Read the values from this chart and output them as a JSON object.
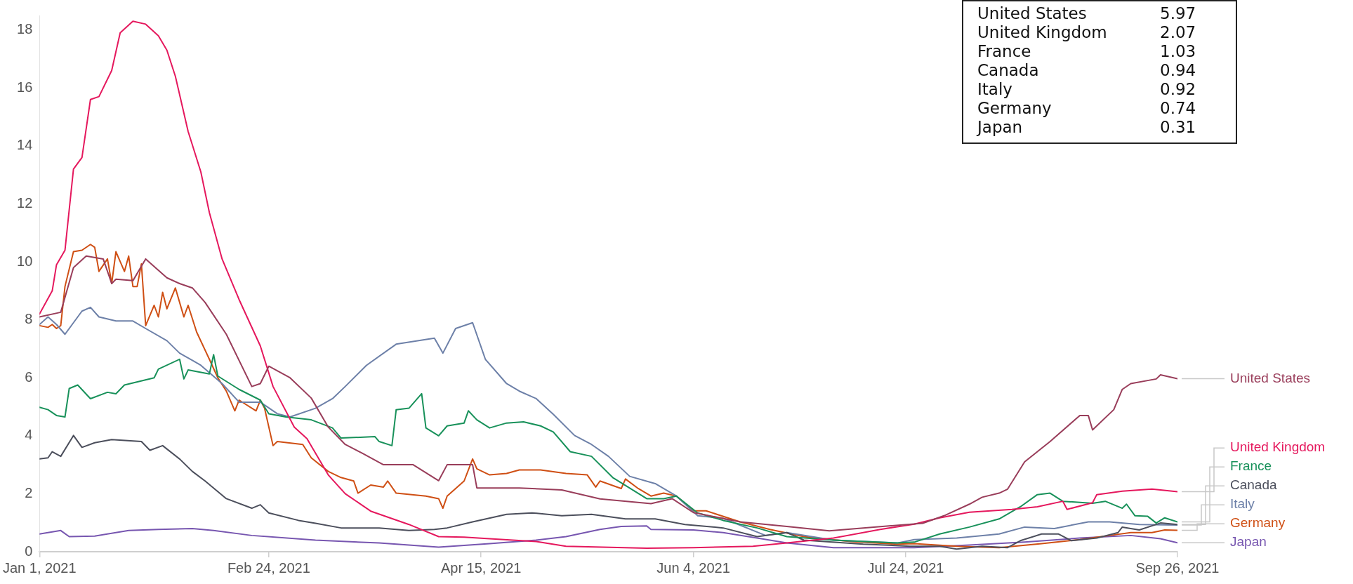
{
  "chart_data": {
    "type": "line",
    "xlim": [
      "2021-01-01",
      "2021-09-26"
    ],
    "xticks": [
      {
        "value": "2021-01-01",
        "label": "Jan 1, 2021"
      },
      {
        "value": "2021-02-24",
        "label": "Feb 24, 2021"
      },
      {
        "value": "2021-04-15",
        "label": "Apr 15, 2021"
      },
      {
        "value": "2021-06-04",
        "label": "Jun 4, 2021"
      },
      {
        "value": "2021-07-24",
        "label": "Jul 24, 2021"
      },
      {
        "value": "2021-09-26",
        "label": "Sep 26, 2021"
      }
    ],
    "ylim": [
      0,
      18.5
    ],
    "yticks": [
      0,
      2,
      4,
      6,
      8,
      10,
      12,
      14,
      16,
      18
    ],
    "series": [
      {
        "name": "United States",
        "color": "#993d5a",
        "x": [
          "2021-01-01",
          "2021-01-06",
          "2021-01-09",
          "2021-01-12",
          "2021-01-16",
          "2021-01-18",
          "2021-01-19",
          "2021-01-23",
          "2021-01-26",
          "2021-01-31",
          "2021-02-03",
          "2021-02-06",
          "2021-02-09",
          "2021-02-14",
          "2021-02-20",
          "2021-02-22",
          "2021-02-24",
          "2021-03-01",
          "2021-03-06",
          "2021-03-10",
          "2021-03-14",
          "2021-03-18",
          "2021-03-23",
          "2021-03-30",
          "2021-04-05",
          "2021-04-07",
          "2021-04-13",
          "2021-04-14",
          "2021-04-24",
          "2021-05-04",
          "2021-05-13",
          "2021-05-25",
          "2021-05-30",
          "2021-06-04",
          "2021-06-15",
          "2021-06-26",
          "2021-07-06",
          "2021-07-14",
          "2021-07-28",
          "2021-08-02",
          "2021-08-08",
          "2021-08-11",
          "2021-08-15",
          "2021-08-17",
          "2021-08-21",
          "2021-08-27",
          "2021-09-03",
          "2021-09-05",
          "2021-09-06",
          "2021-09-11",
          "2021-09-13",
          "2021-09-15",
          "2021-09-21",
          "2021-09-22",
          "2021-09-26"
        ],
        "values": [
          8.1,
          8.26,
          9.8,
          10.2,
          10.1,
          9.25,
          9.4,
          9.35,
          10.1,
          9.45,
          9.25,
          9.1,
          8.6,
          7.5,
          5.7,
          5.8,
          6.4,
          6.0,
          5.3,
          4.3,
          3.7,
          3.4,
          3.0,
          3.0,
          2.45,
          3.0,
          3.0,
          2.2,
          2.2,
          2.13,
          1.82,
          1.66,
          1.83,
          1.35,
          1.03,
          0.87,
          0.72,
          0.82,
          0.98,
          1.24,
          1.64,
          1.88,
          2.02,
          2.16,
          3.1,
          3.8,
          4.7,
          4.7,
          4.2,
          4.9,
          5.6,
          5.8,
          5.96,
          6.1,
          5.97
        ]
      },
      {
        "name": "United Kingdom",
        "color": "#e5185d",
        "x": [
          "2021-01-01",
          "2021-01-04",
          "2021-01-05",
          "2021-01-07",
          "2021-01-09",
          "2021-01-11",
          "2021-01-13",
          "2021-01-15",
          "2021-01-18",
          "2021-01-20",
          "2021-01-23",
          "2021-01-26",
          "2021-01-29",
          "2021-01-31",
          "2021-02-02",
          "2021-02-05",
          "2021-02-08",
          "2021-02-10",
          "2021-02-13",
          "2021-02-17",
          "2021-02-22",
          "2021-02-25",
          "2021-03-02",
          "2021-03-05",
          "2021-03-10",
          "2021-03-14",
          "2021-03-20",
          "2021-03-29",
          "2021-04-05",
          "2021-04-11",
          "2021-04-17",
          "2021-04-28",
          "2021-05-05",
          "2021-05-24",
          "2021-06-04",
          "2021-06-18",
          "2021-06-26",
          "2021-07-07",
          "2021-07-18",
          "2021-07-26",
          "2021-08-01",
          "2021-08-08",
          "2021-08-18",
          "2021-08-24",
          "2021-08-30",
          "2021-08-31",
          "2021-09-06",
          "2021-09-07",
          "2021-09-13",
          "2021-09-20",
          "2021-09-26"
        ],
        "values": [
          8.2,
          9.0,
          9.9,
          10.4,
          13.2,
          13.6,
          15.6,
          15.7,
          16.6,
          17.9,
          18.3,
          18.2,
          17.8,
          17.3,
          16.4,
          14.5,
          13.1,
          11.7,
          10.1,
          8.7,
          7.1,
          5.7,
          4.3,
          3.9,
          2.65,
          2.0,
          1.4,
          0.94,
          0.52,
          0.5,
          0.45,
          0.35,
          0.19,
          0.12,
          0.14,
          0.19,
          0.3,
          0.47,
          0.77,
          0.95,
          1.17,
          1.36,
          1.46,
          1.55,
          1.74,
          1.46,
          1.69,
          1.97,
          2.09,
          2.16,
          2.07
        ]
      },
      {
        "name": "France",
        "color": "#18915a",
        "x": [
          "2021-01-01",
          "2021-01-03",
          "2021-01-05",
          "2021-01-07",
          "2021-01-08",
          "2021-01-10",
          "2021-01-13",
          "2021-01-17",
          "2021-01-19",
          "2021-01-21",
          "2021-01-28",
          "2021-01-29",
          "2021-02-03",
          "2021-02-04",
          "2021-02-05",
          "2021-02-10",
          "2021-02-11",
          "2021-02-12",
          "2021-02-17",
          "2021-02-22",
          "2021-02-24",
          "2021-02-28",
          "2021-03-06",
          "2021-03-11",
          "2021-03-13",
          "2021-03-21",
          "2021-03-22",
          "2021-03-25",
          "2021-03-26",
          "2021-03-29",
          "2021-04-01",
          "2021-04-02",
          "2021-04-05",
          "2021-04-07",
          "2021-04-11",
          "2021-04-12",
          "2021-04-14",
          "2021-04-17",
          "2021-04-21",
          "2021-04-25",
          "2021-04-29",
          "2021-05-02",
          "2021-05-06",
          "2021-05-11",
          "2021-05-16",
          "2021-05-24",
          "2021-05-28",
          "2021-05-31",
          "2021-06-05",
          "2021-06-11",
          "2021-06-19",
          "2021-06-26",
          "2021-07-07",
          "2021-07-22",
          "2021-07-26",
          "2021-08-01",
          "2021-08-08",
          "2021-08-15",
          "2021-08-20",
          "2021-08-24",
          "2021-08-27",
          "2021-08-30",
          "2021-09-06",
          "2021-09-09",
          "2021-09-13",
          "2021-09-14",
          "2021-09-16",
          "2021-09-19",
          "2021-09-21",
          "2021-09-23",
          "2021-09-26"
        ],
        "values": [
          4.98,
          4.9,
          4.7,
          4.65,
          5.63,
          5.75,
          5.28,
          5.5,
          5.45,
          5.75,
          6.0,
          6.3,
          6.64,
          5.96,
          6.27,
          6.13,
          6.8,
          6.06,
          5.6,
          5.23,
          4.76,
          4.65,
          4.55,
          4.27,
          3.92,
          3.97,
          3.8,
          3.66,
          4.9,
          4.95,
          5.45,
          4.27,
          4.0,
          4.34,
          4.44,
          4.86,
          4.55,
          4.27,
          4.44,
          4.48,
          4.34,
          4.13,
          3.45,
          3.29,
          2.56,
          1.83,
          1.83,
          1.92,
          1.34,
          1.08,
          0.82,
          0.52,
          0.4,
          0.3,
          0.33,
          0.61,
          0.85,
          1.13,
          1.55,
          1.97,
          2.02,
          1.74,
          1.67,
          1.74,
          1.5,
          1.64,
          1.24,
          1.22,
          0.99,
          1.17,
          1.03
        ]
      },
      {
        "name": "Canada",
        "color": "#4c4f5c",
        "x": [
          "2021-01-01",
          "2021-01-03",
          "2021-01-04",
          "2021-01-06",
          "2021-01-09",
          "2021-01-11",
          "2021-01-14",
          "2021-01-18",
          "2021-01-25",
          "2021-01-27",
          "2021-01-30",
          "2021-02-03",
          "2021-02-06",
          "2021-02-09",
          "2021-02-14",
          "2021-02-20",
          "2021-02-22",
          "2021-02-24",
          "2021-03-03",
          "2021-03-07",
          "2021-03-13",
          "2021-03-22",
          "2021-03-29",
          "2021-04-04",
          "2021-04-07",
          "2021-04-13",
          "2021-04-21",
          "2021-04-27",
          "2021-05-04",
          "2021-05-11",
          "2021-05-19",
          "2021-05-26",
          "2021-06-02",
          "2021-06-11",
          "2021-06-19",
          "2021-06-26",
          "2021-06-30",
          "2021-07-14",
          "2021-07-25",
          "2021-08-01",
          "2021-08-05",
          "2021-08-11",
          "2021-08-17",
          "2021-08-20",
          "2021-08-25",
          "2021-08-29",
          "2021-09-01",
          "2021-09-07",
          "2021-09-12",
          "2021-09-13",
          "2021-09-17",
          "2021-09-22",
          "2021-09-26"
        ],
        "values": [
          3.2,
          3.24,
          3.45,
          3.29,
          4.01,
          3.6,
          3.76,
          3.87,
          3.8,
          3.5,
          3.66,
          3.2,
          2.77,
          2.44,
          1.83,
          1.5,
          1.62,
          1.34,
          1.08,
          0.98,
          0.82,
          0.82,
          0.73,
          0.77,
          0.82,
          1.03,
          1.29,
          1.34,
          1.24,
          1.29,
          1.13,
          1.13,
          0.94,
          0.82,
          0.52,
          0.66,
          0.4,
          0.26,
          0.19,
          0.19,
          0.09,
          0.19,
          0.14,
          0.38,
          0.61,
          0.61,
          0.38,
          0.47,
          0.66,
          0.85,
          0.75,
          0.99,
          0.94
        ]
      },
      {
        "name": "Italy",
        "color": "#6d80a8",
        "x": [
          "2021-01-01",
          "2021-01-03",
          "2021-01-05",
          "2021-01-07",
          "2021-01-11",
          "2021-01-13",
          "2021-01-15",
          "2021-01-19",
          "2021-01-23",
          "2021-01-26",
          "2021-01-31",
          "2021-02-03",
          "2021-02-06",
          "2021-02-08",
          "2021-02-13",
          "2021-02-17",
          "2021-02-22",
          "2021-02-26",
          "2021-03-01",
          "2021-03-07",
          "2021-03-11",
          "2021-03-14",
          "2021-03-19",
          "2021-03-26",
          "2021-04-04",
          "2021-04-06",
          "2021-04-09",
          "2021-04-13",
          "2021-04-16",
          "2021-04-21",
          "2021-04-24",
          "2021-04-28",
          "2021-05-02",
          "2021-05-07",
          "2021-05-11",
          "2021-05-15",
          "2021-05-20",
          "2021-05-26",
          "2021-05-31",
          "2021-06-05",
          "2021-06-11",
          "2021-06-21",
          "2021-06-26",
          "2021-07-07",
          "2021-07-22",
          "2021-07-26",
          "2021-08-05",
          "2021-08-15",
          "2021-08-21",
          "2021-08-28",
          "2021-09-05",
          "2021-09-10",
          "2021-09-17",
          "2021-09-26"
        ],
        "values": [
          7.84,
          8.1,
          7.84,
          7.5,
          8.3,
          8.43,
          8.1,
          7.96,
          7.96,
          7.7,
          7.28,
          6.85,
          6.6,
          6.43,
          5.8,
          5.16,
          5.16,
          4.76,
          4.65,
          4.95,
          5.28,
          5.7,
          6.43,
          7.16,
          7.37,
          6.85,
          7.7,
          7.9,
          6.64,
          5.8,
          5.54,
          5.28,
          4.74,
          4.01,
          3.7,
          3.29,
          2.6,
          2.35,
          1.92,
          1.24,
          1.15,
          0.56,
          0.66,
          0.4,
          0.3,
          0.42,
          0.47,
          0.61,
          0.85,
          0.8,
          1.03,
          1.03,
          0.94,
          0.92
        ]
      },
      {
        "name": "Germany",
        "color": "#cf4f14",
        "x": [
          "2021-01-01",
          "2021-01-03",
          "2021-01-04",
          "2021-01-05",
          "2021-01-06",
          "2021-01-07",
          "2021-01-09",
          "2021-01-11",
          "2021-01-13",
          "2021-01-14",
          "2021-01-15",
          "2021-01-17",
          "2021-01-18",
          "2021-01-19",
          "2021-01-21",
          "2021-01-22",
          "2021-01-23",
          "2021-01-24",
          "2021-01-25",
          "2021-01-26",
          "2021-01-28",
          "2021-01-29",
          "2021-01-30",
          "2021-01-31",
          "2021-02-02",
          "2021-02-04",
          "2021-02-05",
          "2021-02-07",
          "2021-02-10",
          "2021-02-12",
          "2021-02-14",
          "2021-02-16",
          "2021-02-17",
          "2021-02-21",
          "2021-02-22",
          "2021-02-23",
          "2021-02-25",
          "2021-02-26",
          "2021-03-04",
          "2021-03-06",
          "2021-03-10",
          "2021-03-13",
          "2021-03-16",
          "2021-03-17",
          "2021-03-20",
          "2021-03-23",
          "2021-03-24",
          "2021-03-26",
          "2021-04-02",
          "2021-04-05",
          "2021-04-06",
          "2021-04-07",
          "2021-04-11",
          "2021-04-13",
          "2021-04-14",
          "2021-04-17",
          "2021-04-21",
          "2021-04-24",
          "2021-04-29",
          "2021-05-05",
          "2021-05-10",
          "2021-05-12",
          "2021-05-13",
          "2021-05-18",
          "2021-05-19",
          "2021-05-22",
          "2021-05-25",
          "2021-05-28",
          "2021-05-31",
          "2021-06-04",
          "2021-06-07",
          "2021-06-15",
          "2021-06-22",
          "2021-06-30",
          "2021-07-11",
          "2021-07-22",
          "2021-07-26",
          "2021-08-05",
          "2021-08-15",
          "2021-08-25",
          "2021-09-03",
          "2021-09-10",
          "2021-09-15",
          "2021-09-20",
          "2021-09-23",
          "2021-09-26"
        ],
        "values": [
          7.8,
          7.74,
          7.84,
          7.7,
          7.8,
          9.15,
          10.35,
          10.4,
          10.6,
          10.5,
          9.67,
          10.1,
          9.25,
          10.35,
          9.67,
          10.2,
          9.15,
          9.15,
          9.93,
          7.8,
          8.5,
          8.1,
          8.95,
          8.38,
          9.1,
          8.1,
          8.5,
          7.58,
          6.64,
          6.0,
          5.54,
          4.86,
          5.23,
          4.86,
          5.23,
          4.95,
          3.66,
          3.8,
          3.7,
          3.24,
          2.77,
          2.56,
          2.44,
          2.02,
          2.3,
          2.23,
          2.44,
          2.02,
          1.92,
          1.83,
          1.5,
          1.92,
          2.44,
          3.2,
          2.86,
          2.65,
          2.7,
          2.82,
          2.82,
          2.7,
          2.65,
          2.23,
          2.44,
          2.18,
          2.51,
          2.18,
          1.92,
          2.02,
          1.92,
          1.41,
          1.41,
          1.03,
          0.77,
          0.52,
          0.35,
          0.26,
          0.28,
          0.19,
          0.14,
          0.28,
          0.42,
          0.56,
          0.66,
          0.66,
          0.75,
          0.74
        ]
      },
      {
        "name": "Japan",
        "color": "#7756b0",
        "x": [
          "2021-01-01",
          "2021-01-06",
          "2021-01-08",
          "2021-01-14",
          "2021-01-22",
          "2021-01-29",
          "2021-02-06",
          "2021-02-11",
          "2021-02-20",
          "2021-03-07",
          "2021-03-22",
          "2021-04-05",
          "2021-04-17",
          "2021-04-28",
          "2021-05-05",
          "2021-05-13",
          "2021-05-18",
          "2021-05-24",
          "2021-05-25",
          "2021-06-04",
          "2021-06-11",
          "2021-06-19",
          "2021-06-26",
          "2021-07-07",
          "2021-07-22",
          "2021-07-26",
          "2021-08-08",
          "2021-08-21",
          "2021-09-03",
          "2021-09-15",
          "2021-09-22",
          "2021-09-26"
        ],
        "values": [
          0.61,
          0.73,
          0.52,
          0.54,
          0.73,
          0.77,
          0.8,
          0.73,
          0.56,
          0.4,
          0.3,
          0.16,
          0.28,
          0.4,
          0.52,
          0.77,
          0.87,
          0.89,
          0.77,
          0.75,
          0.66,
          0.47,
          0.3,
          0.14,
          0.14,
          0.14,
          0.23,
          0.33,
          0.47,
          0.56,
          0.45,
          0.31
        ]
      }
    ],
    "annotations": [
      "United States 5.97",
      "United Kingdom 2.07",
      "France 1.03",
      "Canada 0.94",
      "Italy 0.92",
      "Germany 0.74",
      "Japan 0.31"
    ]
  }
}
